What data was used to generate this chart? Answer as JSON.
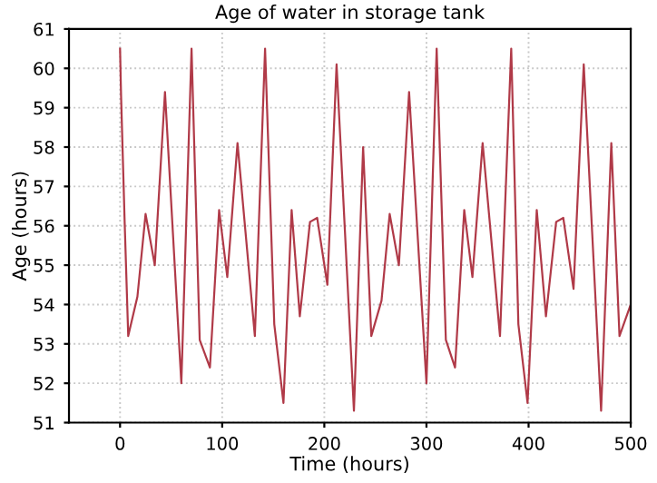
{
  "chart_data": {
    "type": "line",
    "title": "Age of water in storage tank",
    "xlabel": "Time (hours)",
    "ylabel": "Age (hours)",
    "xlim": [
      -50,
      500
    ],
    "xticks": [
      0,
      100,
      200,
      300,
      400,
      500
    ],
    "ylim": [
      51,
      61
    ],
    "yticks": [
      51,
      52,
      53,
      54,
      55,
      56,
      57,
      58,
      59,
      60,
      61
    ],
    "grid": true,
    "marker": "none",
    "line_style": "solid",
    "series": [
      {
        "color": "#b03a48",
        "x": [
          0,
          1,
          4.5,
          8,
          17,
          25,
          34,
          44,
          60,
          70,
          78,
          88,
          97,
          105,
          115,
          132,
          142,
          151,
          160,
          168,
          176,
          186,
          193,
          203,
          212,
          229,
          238,
          246,
          256,
          264,
          273,
          283,
          300,
          310,
          319,
          328,
          337,
          345,
          355,
          372,
          383,
          390,
          399,
          408,
          417,
          427,
          434,
          444,
          454,
          471,
          481,
          489,
          500
        ],
        "values": [
          60.5,
          59.3,
          56.1,
          53.2,
          54.2,
          56.3,
          55.0,
          59.4,
          52.0,
          60.5,
          53.1,
          52.4,
          56.4,
          54.7,
          58.1,
          53.2,
          60.5,
          53.5,
          51.5,
          56.4,
          53.7,
          56.1,
          56.2,
          54.5,
          60.1,
          51.3,
          58.0,
          53.2,
          54.1,
          56.3,
          55.0,
          59.4,
          52.0,
          60.5,
          53.1,
          52.4,
          56.4,
          54.7,
          58.1,
          53.2,
          60.5,
          53.5,
          51.5,
          56.4,
          53.7,
          56.1,
          56.2,
          54.4,
          60.1,
          51.3,
          58.1,
          53.2,
          54.0
        ]
      }
    ]
  }
}
